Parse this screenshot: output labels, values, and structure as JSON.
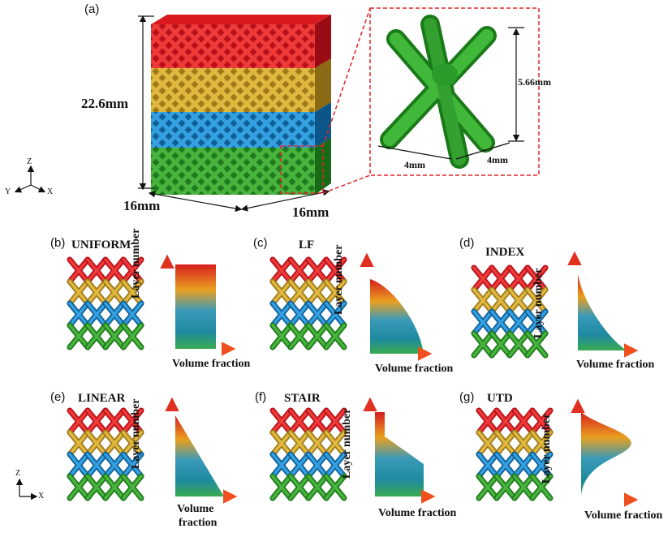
{
  "figure": {
    "panel_a": {
      "label": "(a)",
      "height_dim": "22.6mm",
      "width_dim_left": "16mm",
      "width_dim_right": "16mm",
      "cell_height_dim": "5.66mm",
      "cell_width_dim_left": "4mm",
      "cell_width_dim_right": "4mm",
      "axes": {
        "z": "Z",
        "x": "X",
        "y": "Y"
      }
    },
    "panels": [
      {
        "label": "(b)",
        "title": "UNIFORM",
        "profile": "uniform"
      },
      {
        "label": "(c)",
        "title": "LF",
        "profile": "lf"
      },
      {
        "label": "(d)",
        "title": "INDEX",
        "profile": "index"
      },
      {
        "label": "(e)",
        "title": "LINEAR",
        "profile": "linear"
      },
      {
        "label": "(f)",
        "title": "STAIR",
        "profile": "stair"
      },
      {
        "label": "(g)",
        "title": "UTD",
        "profile": "utd"
      }
    ],
    "ylabel": "Layer number",
    "xlabel": "Volume fraction",
    "xlabel_split": [
      "Volume",
      "fraction"
    ],
    "side_axes": {
      "z": "Z",
      "x": "X"
    },
    "colors": {
      "red": "#d8141c",
      "yellow": "#c9a030",
      "blue": "#1c86c8",
      "green": "#2f9a2a",
      "dashed": "#e0262a"
    }
  }
}
